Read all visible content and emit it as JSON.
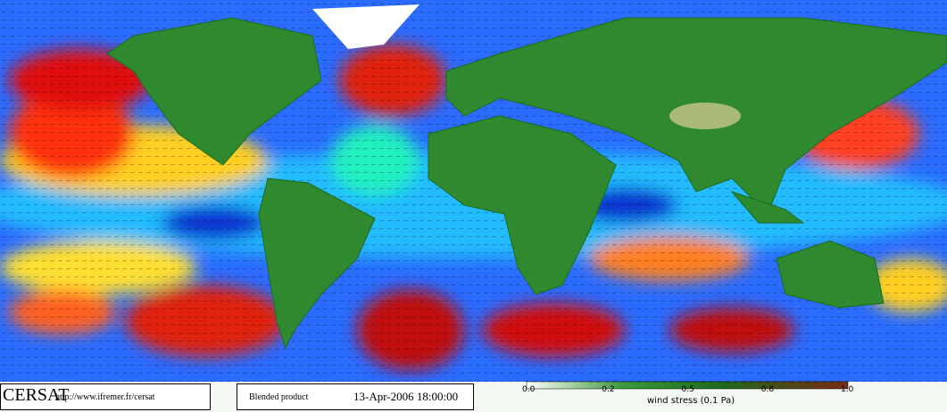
{
  "footer": {
    "logo": "CERSAT",
    "url": "http://www.ifremer.fr/cersat",
    "product": "Blended product",
    "date": "13-Apr-2006 18:00:00",
    "colorbar": {
      "ticks": [
        "0.0",
        "0.2",
        "0.5",
        "0.8",
        "1.0"
      ],
      "label": "wind stress (0.1 Pa)"
    }
  }
}
